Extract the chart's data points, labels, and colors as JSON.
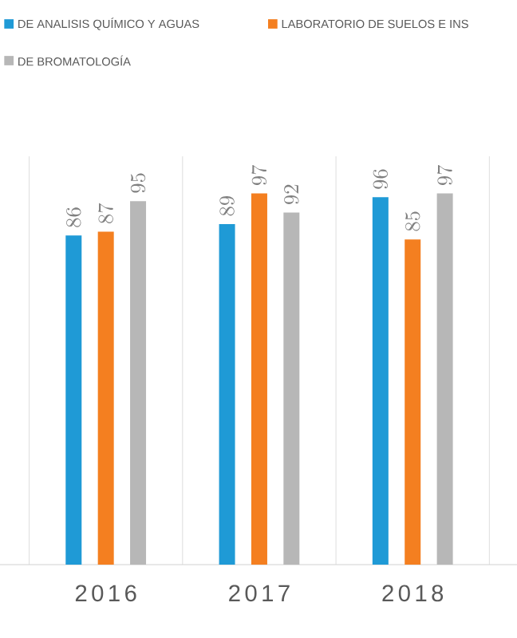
{
  "chart_data": {
    "type": "bar",
    "categories": [
      "2016",
      "2017",
      "2018"
    ],
    "series": [
      {
        "name": "DE ANALISIS QUÍMICO Y AGUAS",
        "color": "#1f9ad6",
        "values": [
          86,
          89,
          96
        ]
      },
      {
        "name": "LABORATORIO DE SUELOS E INS",
        "color": "#f47f20",
        "values": [
          87,
          97,
          85
        ]
      },
      {
        "name": "DE BROMATOLOGÍA",
        "color": "#b7b7b7",
        "values": [
          95,
          92,
          97
        ]
      }
    ],
    "data_labels": true,
    "grid": "x",
    "legend": "top"
  }
}
